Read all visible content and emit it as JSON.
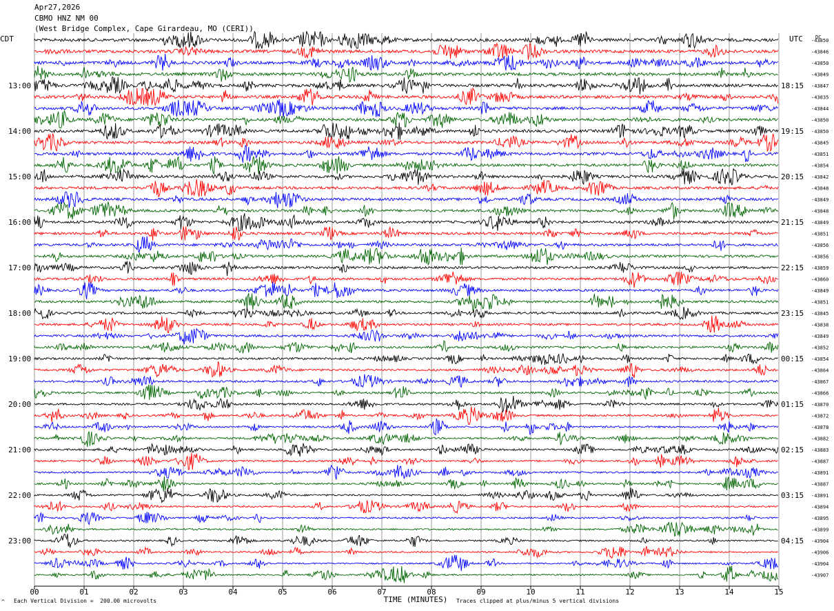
{
  "header": {
    "date": "Apr27,2026",
    "channel": "CBMO HNZ NM 00",
    "location": "(West Bridge Complex, Cape Girardeau, MO (CERI))"
  },
  "labels": {
    "left_tz": "CDT",
    "right_tz": "UTC",
    "dc_label": "DC"
  },
  "footer": {
    "scale_note": "Each Vertical Division =  200.00 microvolts",
    "clip_note": "Traces clipped at plus/minus 5 vertical divisions",
    "corner_mark": "^"
  },
  "colors": {
    "trace_cycle": [
      "#000000",
      "#ff0000",
      "#0000ff",
      "#006400"
    ],
    "grid": "#808080"
  },
  "chart_data": {
    "type": "line",
    "xlabel": "TIME (MINUTES)",
    "xlim": [
      0,
      15
    ],
    "x_ticks": [
      "00",
      "01",
      "02",
      "03",
      "04",
      "05",
      "06",
      "07",
      "08",
      "09",
      "10",
      "11",
      "12",
      "13",
      "14",
      "15"
    ],
    "left_hour_labels": [
      "13:00",
      "14:00",
      "15:00",
      "16:00",
      "17:00",
      "18:00",
      "19:00",
      "20:00",
      "21:00",
      "22:00",
      "23:00"
    ],
    "right_hour_labels": [
      "18:15",
      "19:15",
      "20:15",
      "21:15",
      "22:15",
      "23:15",
      "00:15",
      "01:15",
      "02:15",
      "03:15",
      "04:15"
    ],
    "dc_offsets": [
      -43850,
      -43846,
      -43850,
      -43849,
      -43847,
      -43835,
      -43844,
      -43850,
      -43850,
      -43845,
      -43851,
      -43854,
      -43842,
      -43848,
      -43849,
      -43848,
      -43849,
      -43851,
      -43856,
      -43856,
      -43859,
      -43860,
      -43849,
      -43851,
      -43845,
      -43838,
      -43849,
      -43852,
      -43854,
      -43864,
      -43867,
      -43866,
      -43870,
      -43872,
      -43878,
      -43882,
      -43883,
      -43887,
      -43891,
      -43887,
      -43891,
      -43894,
      -43895,
      -43899,
      -43904,
      -43906,
      -43904,
      -43907
    ],
    "first_label_trace": 4,
    "traces_per_hour": 4
  }
}
